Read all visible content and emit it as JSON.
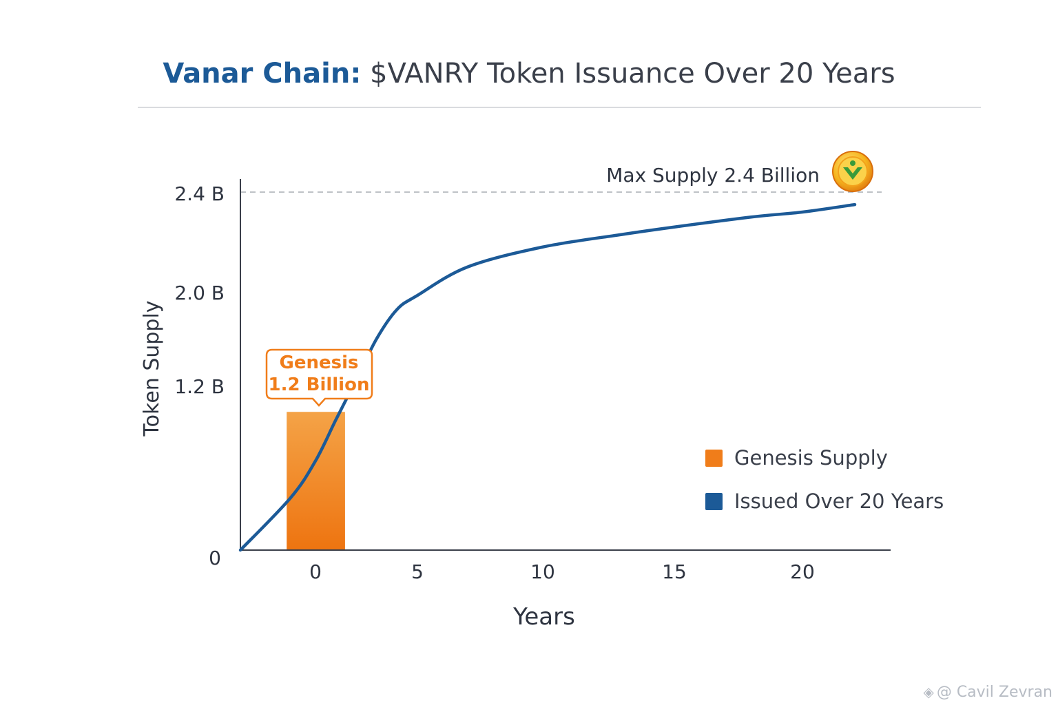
{
  "header": {
    "title_brand": "Vanar Chain:",
    "title_rest": "$VANRY Token Issuance Over 20 Years"
  },
  "chart_data": {
    "type": "line",
    "xlabel": "Years",
    "ylabel": "Token Supply",
    "x_ticks": [
      "0",
      "5",
      "10",
      "15",
      "20"
    ],
    "y_ticks": [
      "0",
      "1.2 B",
      "2.0 B",
      "2.4 B"
    ],
    "max_supply_label": "Max Supply 2.4 Billion",
    "max_supply_value": 2.4,
    "genesis": {
      "label_line1": "Genesis",
      "label_line2": "1.2 Billion",
      "value": 1.2,
      "x": 0
    },
    "series": [
      {
        "name": "Issued Over 20 Years",
        "x": [
          -3,
          -1,
          0,
          1,
          2,
          3,
          4,
          5,
          7,
          10,
          13,
          15,
          18,
          20,
          22
        ],
        "y": [
          0,
          0.38,
          0.65,
          0.95,
          1.25,
          1.6,
          1.85,
          1.97,
          2.1,
          2.18,
          2.23,
          2.26,
          2.3,
          2.32,
          2.35
        ]
      }
    ],
    "legend": [
      {
        "label": "Genesis Supply",
        "color": "#f07d1a"
      },
      {
        "label": "Issued Over 20 Years",
        "color": "#1c5a97"
      }
    ],
    "grid": false,
    "legend_position": "right"
  },
  "colors": {
    "brand_blue": "#1c5a97",
    "genesis_orange": "#f07d1a"
  },
  "watermark": {
    "text": "@ Cavil Zevran",
    "icon": "binance-square-icon"
  },
  "coin_icon": "vanar-coin-icon"
}
